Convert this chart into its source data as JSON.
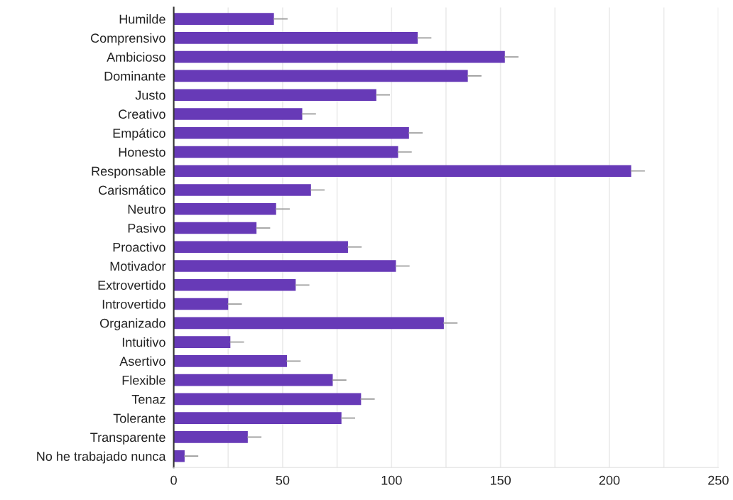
{
  "chart_data": {
    "type": "bar",
    "orientation": "horizontal",
    "categories": [
      "Humilde",
      "Comprensivo",
      "Ambicioso",
      "Dominante",
      "Justo",
      "Creativo",
      "Empático",
      "Honesto",
      "Responsable",
      "Carismático",
      "Neutro",
      "Pasivo",
      "Proactivo",
      "Motivador",
      "Extrovertido",
      "Introvertido",
      "Organizado",
      "Intuitivo",
      "Asertivo",
      "Flexible",
      "Tenaz",
      "Tolerante",
      "Transparente",
      "No he trabajado nunca"
    ],
    "values": [
      46,
      112,
      152,
      135,
      93,
      59,
      108,
      103,
      210,
      63,
      47,
      38,
      80,
      102,
      56,
      25,
      124,
      26,
      52,
      73,
      86,
      77,
      34,
      5
    ],
    "errors": [
      [
        46,
        52
      ],
      [
        112,
        118
      ],
      [
        152,
        158
      ],
      [
        135,
        141
      ],
      [
        93,
        99
      ],
      [
        59,
        65
      ],
      [
        108,
        114
      ],
      [
        103,
        109
      ],
      [
        210,
        216
      ],
      [
        63,
        69
      ],
      [
        47,
        53
      ],
      [
        38,
        44
      ],
      [
        80,
        86
      ],
      [
        102,
        108
      ],
      [
        56,
        62
      ],
      [
        25,
        31
      ],
      [
        124,
        130
      ],
      [
        26,
        32
      ],
      [
        52,
        58
      ],
      [
        73,
        79
      ],
      [
        86,
        92
      ],
      [
        77,
        83
      ],
      [
        34,
        40
      ],
      [
        5,
        11
      ]
    ],
    "color": "#673ab7",
    "xlim": [
      0,
      250
    ],
    "xticks": [
      0,
      {
        "value": 25,
        "label": null
      },
      50,
      {
        "value": 75,
        "label": null
      },
      100,
      {
        "value": 125,
        "label": null
      },
      150,
      {
        "value": 175,
        "label": null
      },
      200,
      {
        "value": 225,
        "label": null
      },
      250
    ],
    "grid": "x"
  }
}
